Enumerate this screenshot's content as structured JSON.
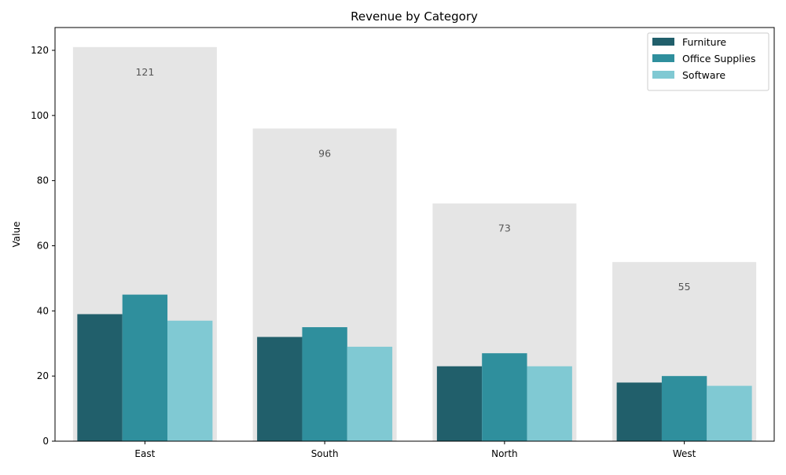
{
  "chart_data": {
    "type": "bar",
    "title": "Revenue by Category",
    "xlabel": "",
    "ylabel": "Value",
    "categories": [
      "East",
      "South",
      "North",
      "West"
    ],
    "series": [
      {
        "name": "Furniture",
        "values": [
          39,
          32,
          23,
          18
        ],
        "color": "#215f6b"
      },
      {
        "name": "Office Supplies",
        "values": [
          45,
          35,
          27,
          20
        ],
        "color": "#2f8f9d"
      },
      {
        "name": "Software",
        "values": [
          37,
          29,
          23,
          17
        ],
        "color": "#80c9d3"
      }
    ],
    "totals": [
      121,
      96,
      73,
      55
    ],
    "total_labels": [
      "121",
      "96",
      "73",
      "55"
    ],
    "total_color": "#e5e5e5",
    "ylim": [
      0,
      127
    ],
    "yticks": [
      0,
      20,
      40,
      60,
      80,
      100,
      120
    ],
    "grid": false,
    "legend_position": "top-right"
  }
}
